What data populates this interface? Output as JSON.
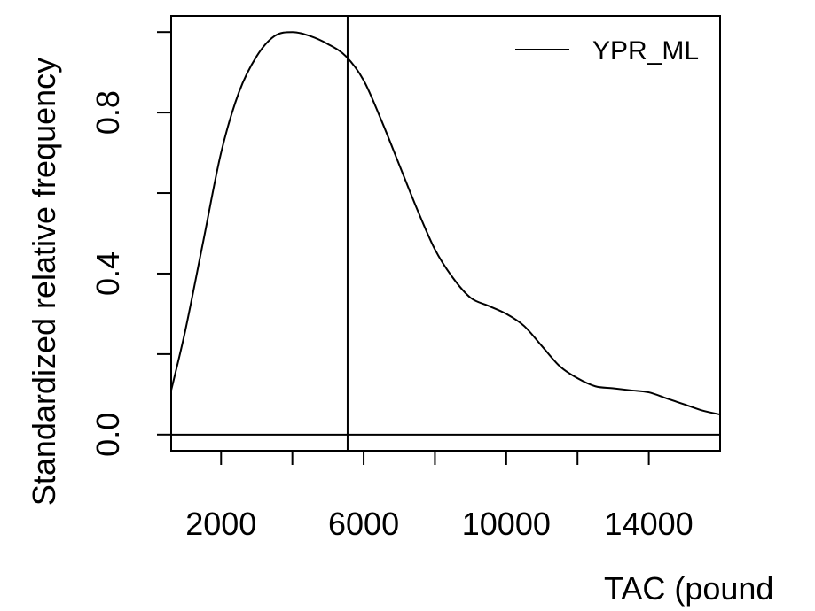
{
  "chart_data": {
    "type": "line",
    "xlabel": "TAC (pounds)",
    "xlabel_visible": "TAC (pound",
    "ylabel": "Standardized relative frequency",
    "xlim": [
      600,
      16000
    ],
    "ylim": [
      -0.04,
      1.04
    ],
    "x_ticks": [
      2000,
      4000,
      6000,
      8000,
      10000,
      12000,
      14000
    ],
    "x_tick_labels": [
      "2000",
      "",
      "6000",
      "",
      "10000",
      "",
      "14000"
    ],
    "y_ticks": [
      0.0,
      0.2,
      0.4,
      0.6,
      0.8,
      1.0
    ],
    "y_tick_labels": [
      "0.0",
      "",
      "0.4",
      "",
      "0.8",
      ""
    ],
    "legend": {
      "position": "top-right",
      "entries": [
        "YPR_ML"
      ]
    },
    "reference_lines": {
      "vertical_x": 5550,
      "horizontal_y": 0.0
    },
    "series": [
      {
        "name": "YPR_ML",
        "x": [
          600,
          1000,
          1500,
          2000,
          2500,
          3000,
          3500,
          4000,
          4500,
          5000,
          5500,
          6000,
          6500,
          7000,
          7500,
          8000,
          8500,
          9000,
          9500,
          10000,
          10500,
          11000,
          11500,
          12000,
          12500,
          13000,
          13500,
          14000,
          14500,
          15000,
          15500,
          16000
        ],
        "y": [
          0.11,
          0.26,
          0.48,
          0.7,
          0.85,
          0.94,
          0.99,
          1.0,
          0.99,
          0.97,
          0.94,
          0.88,
          0.78,
          0.67,
          0.56,
          0.46,
          0.39,
          0.34,
          0.32,
          0.3,
          0.27,
          0.22,
          0.17,
          0.14,
          0.12,
          0.115,
          0.11,
          0.105,
          0.09,
          0.075,
          0.06,
          0.05
        ]
      }
    ]
  }
}
